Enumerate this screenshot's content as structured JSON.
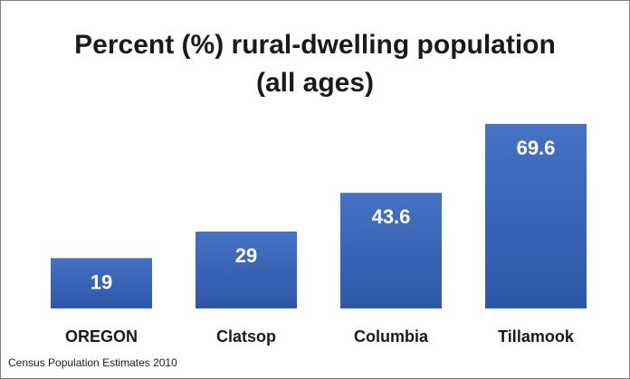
{
  "chart_data": {
    "type": "bar",
    "title_lines": [
      "Percent (%) rural-dwelling population",
      "(all ages)"
    ],
    "categories": [
      "OREGON",
      "Clatsop",
      "Columbia",
      "Tillamook"
    ],
    "values": [
      19,
      29,
      43.6,
      69.6
    ],
    "value_labels": [
      "19",
      "29",
      "43.6",
      "69.6"
    ],
    "xlabel": "",
    "ylabel": "",
    "grid": false,
    "legend": "none",
    "bar_color": "#3d67c0",
    "bar_color_dark": "#2e53a4",
    "source": "Census Population Estimates 2010"
  }
}
